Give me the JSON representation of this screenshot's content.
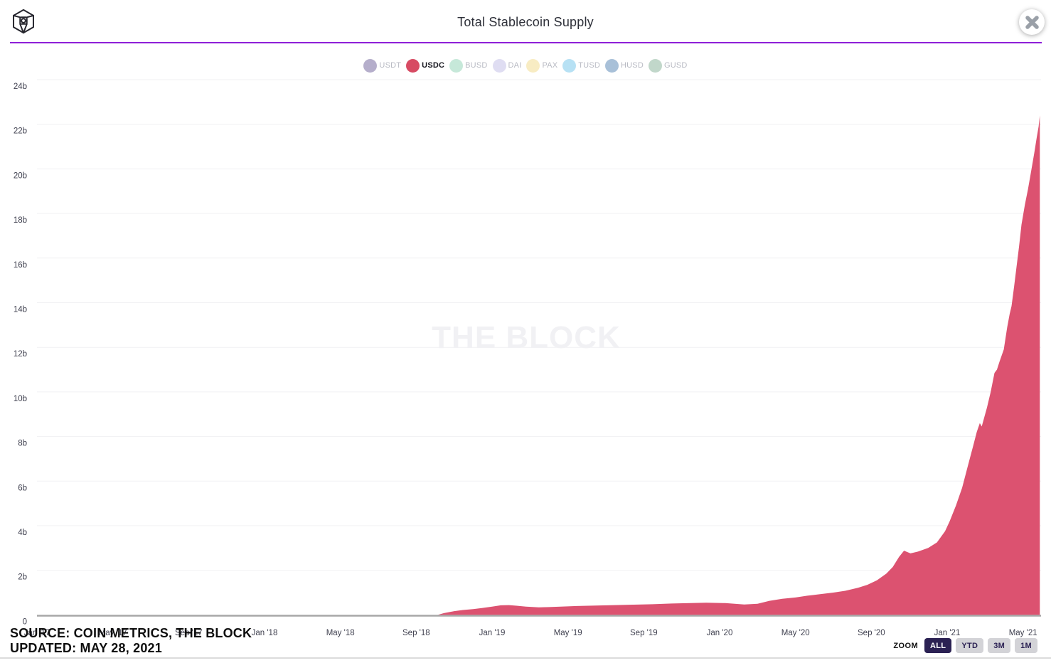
{
  "header": {
    "title": "Total Stablecoin Supply"
  },
  "colors": {
    "divider_purple": "#8e1fd8",
    "area_red": "#dc5270",
    "axis_line_gray": "#a7a7a7",
    "gridline": "#f1f1f3",
    "tick_label": "#3e3f4e",
    "watermark_gray": "#f1f1f4",
    "button_active_bg": "#2b2153",
    "button_inactive_bg": "#d3d3d7"
  },
  "legend": {
    "items": [
      {
        "label": "USDT",
        "color": "#b5aecb",
        "active": false
      },
      {
        "label": "USDC",
        "color": "#d74b63",
        "active": true
      },
      {
        "label": "BUSD",
        "color": "#c6e8d9",
        "active": false
      },
      {
        "label": "DAI",
        "color": "#dfddf2",
        "active": false
      },
      {
        "label": "PAX",
        "color": "#f8ecc3",
        "active": false
      },
      {
        "label": "TUSD",
        "color": "#b7e1f4",
        "active": false
      },
      {
        "label": "HUSD",
        "color": "#a8c0d8",
        "active": false
      },
      {
        "label": "GUSD",
        "color": "#c1d7ca",
        "active": false
      }
    ]
  },
  "chart_data": {
    "type": "area",
    "title": "Total Stablecoin Supply",
    "watermark": "THE BLOCK",
    "unit": "billions of USD",
    "ylim": [
      0,
      24
    ],
    "grid": true,
    "legend_position": "top",
    "y_ticks": [
      "0",
      "2b",
      "4b",
      "6b",
      "8b",
      "10b",
      "12b",
      "14b",
      "16b",
      "18b",
      "20b",
      "22b",
      "24b"
    ],
    "x_ticks": [
      "Jan '17",
      "May '17",
      "Sep '17",
      "Jan '18",
      "May '18",
      "Sep '18",
      "Jan '19",
      "May '19",
      "Sep '19",
      "Jan '20",
      "May '20",
      "Sep '20",
      "Jan '21",
      "May '21"
    ],
    "x_range": [
      "2017-01-01",
      "2021-05-28"
    ],
    "series": [
      {
        "name": "USDC",
        "color": "#dc5270",
        "points": [
          [
            "2017-01-01",
            0
          ],
          [
            "2018-10-05",
            0
          ],
          [
            "2018-10-15",
            0.08
          ],
          [
            "2018-11-01",
            0.17
          ],
          [
            "2018-11-15",
            0.22
          ],
          [
            "2018-12-01",
            0.26
          ],
          [
            "2018-12-15",
            0.31
          ],
          [
            "2019-01-01",
            0.37
          ],
          [
            "2019-01-15",
            0.43
          ],
          [
            "2019-01-28",
            0.44
          ],
          [
            "2019-02-10",
            0.41
          ],
          [
            "2019-02-25",
            0.37
          ],
          [
            "2019-03-15",
            0.34
          ],
          [
            "2019-04-01",
            0.35
          ],
          [
            "2019-04-20",
            0.37
          ],
          [
            "2019-05-15",
            0.4
          ],
          [
            "2019-06-15",
            0.42
          ],
          [
            "2019-07-15",
            0.44
          ],
          [
            "2019-08-15",
            0.46
          ],
          [
            "2019-09-15",
            0.48
          ],
          [
            "2019-10-15",
            0.51
          ],
          [
            "2019-11-15",
            0.53
          ],
          [
            "2019-12-10",
            0.55
          ],
          [
            "2020-01-10",
            0.53
          ],
          [
            "2020-02-10",
            0.47
          ],
          [
            "2020-03-01",
            0.5
          ],
          [
            "2020-03-20",
            0.63
          ],
          [
            "2020-04-10",
            0.72
          ],
          [
            "2020-05-01",
            0.78
          ],
          [
            "2020-05-20",
            0.86
          ],
          [
            "2020-06-10",
            0.93
          ],
          [
            "2020-07-01",
            1.0
          ],
          [
            "2020-07-20",
            1.08
          ],
          [
            "2020-08-10",
            1.22
          ],
          [
            "2020-08-25",
            1.35
          ],
          [
            "2020-09-10",
            1.55
          ],
          [
            "2020-09-25",
            1.85
          ],
          [
            "2020-10-05",
            2.15
          ],
          [
            "2020-10-15",
            2.6
          ],
          [
            "2020-10-23",
            2.88
          ],
          [
            "2020-11-03",
            2.76
          ],
          [
            "2020-11-15",
            2.84
          ],
          [
            "2020-12-01",
            3.0
          ],
          [
            "2020-12-15",
            3.25
          ],
          [
            "2020-12-28",
            3.75
          ],
          [
            "2021-01-05",
            4.2
          ],
          [
            "2021-01-15",
            4.9
          ],
          [
            "2021-01-25",
            5.7
          ],
          [
            "2021-02-03",
            6.6
          ],
          [
            "2021-02-12",
            7.55
          ],
          [
            "2021-02-18",
            8.2
          ],
          [
            "2021-02-23",
            8.6
          ],
          [
            "2021-02-26",
            8.45
          ],
          [
            "2021-03-04",
            9.3
          ],
          [
            "2021-03-10",
            10.0
          ],
          [
            "2021-03-16",
            10.85
          ],
          [
            "2021-03-20",
            11.0
          ],
          [
            "2021-03-24",
            11.35
          ],
          [
            "2021-03-31",
            11.9
          ],
          [
            "2021-04-06",
            12.9
          ],
          [
            "2021-04-10",
            13.5
          ],
          [
            "2021-04-13",
            13.85
          ],
          [
            "2021-04-17",
            14.7
          ],
          [
            "2021-04-21",
            15.6
          ],
          [
            "2021-04-25",
            16.5
          ],
          [
            "2021-04-29",
            17.5
          ],
          [
            "2021-05-04",
            18.4
          ],
          [
            "2021-05-09",
            19.1
          ],
          [
            "2021-05-14",
            19.9
          ],
          [
            "2021-05-19",
            20.7
          ],
          [
            "2021-05-23",
            21.4
          ],
          [
            "2021-05-26",
            21.9
          ],
          [
            "2021-05-28",
            22.4
          ]
        ]
      }
    ]
  },
  "source": {
    "line1": "SOURCE: COIN METRICS, THE BLOCK",
    "line2": "UPDATED: MAY 28, 2021"
  },
  "zoom_controls": {
    "label": "ZOOM",
    "buttons": [
      {
        "label": "ALL",
        "active": true
      },
      {
        "label": "YTD",
        "active": false
      },
      {
        "label": "3M",
        "active": false
      },
      {
        "label": "1M",
        "active": false
      }
    ]
  }
}
